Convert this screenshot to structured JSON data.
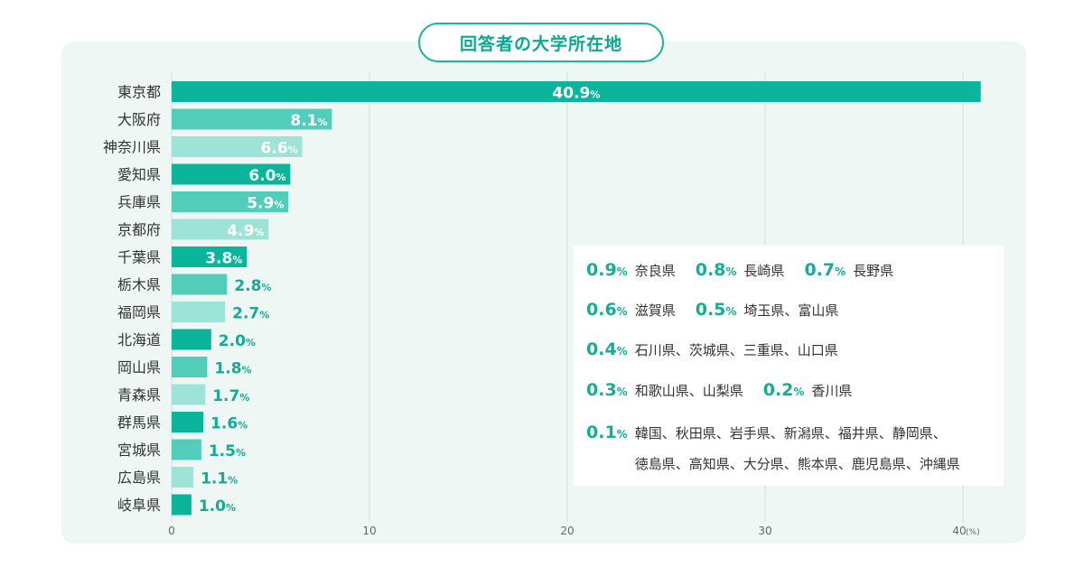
{
  "title": "回答者の大学所在地",
  "chart_data": {
    "type": "bar",
    "orientation": "horizontal",
    "title": "回答者の大学所在地",
    "categories": [
      "東京都",
      "大阪府",
      "神奈川県",
      "愛知県",
      "兵庫県",
      "京都府",
      "千葉県",
      "栃木県",
      "福岡県",
      "北海道",
      "岡山県",
      "青森県",
      "群馬県",
      "宮城県",
      "広島県",
      "岐阜県"
    ],
    "values": [
      40.9,
      8.1,
      6.6,
      6.0,
      5.9,
      4.9,
      3.8,
      2.8,
      2.7,
      2.0,
      1.8,
      1.7,
      1.6,
      1.5,
      1.1,
      1.0
    ],
    "value_labels": [
      "40.9",
      "8.1",
      "6.6",
      "6.0",
      "5.9",
      "4.9",
      "3.8",
      "2.8",
      "2.7",
      "2.0",
      "1.8",
      "1.7",
      "1.6",
      "1.5",
      "1.1",
      "1.0"
    ],
    "value_unit": "%",
    "xlim": [
      0,
      43
    ],
    "xticks": [
      0,
      10,
      20,
      30,
      40
    ],
    "xtick_labels": [
      "0",
      "10",
      "20",
      "30",
      "40"
    ],
    "x_unit_label": "(%)",
    "grid": true,
    "colors": [
      "#0ab59c",
      "#52cdb9",
      "#9de3d8"
    ]
  },
  "others": [
    {
      "groups": [
        {
          "pct": "0.9",
          "unit": "%",
          "prefs": "奈良県"
        },
        {
          "pct": "0.8",
          "unit": "%",
          "prefs": "長崎県"
        },
        {
          "pct": "0.7",
          "unit": "%",
          "prefs": "長野県"
        }
      ]
    },
    {
      "groups": [
        {
          "pct": "0.6",
          "unit": "%",
          "prefs": "滋賀県"
        },
        {
          "pct": "0.5",
          "unit": "%",
          "prefs": "埼玉県、富山県"
        }
      ]
    },
    {
      "groups": [
        {
          "pct": "0.4",
          "unit": "%",
          "prefs": "石川県、茨城県、三重県、山口県"
        }
      ]
    },
    {
      "groups": [
        {
          "pct": "0.3",
          "unit": "%",
          "prefs": "和歌山県、山梨県"
        },
        {
          "pct": "0.2",
          "unit": "%",
          "prefs": "香川県"
        }
      ]
    },
    {
      "groups": [
        {
          "pct": "0.1",
          "unit": "%",
          "prefs": "韓国、秋田県、岩手県、新潟県、福井県、静岡県、",
          "prefs2": "徳島県、高知県、大分県、熊本県、鹿児島県、沖縄県"
        }
      ]
    }
  ]
}
